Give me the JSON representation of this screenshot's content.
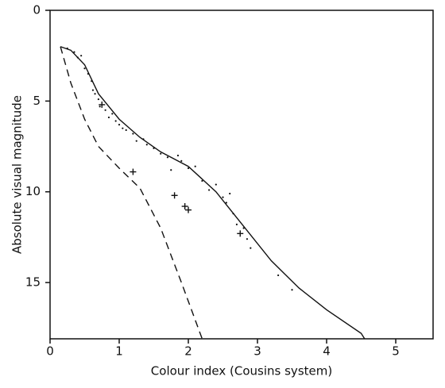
{
  "chart_data": {
    "type": "scatter",
    "xlabel": "Colour index (Cousins system)",
    "ylabel": "Absolute visual magnitude",
    "xlim": [
      0,
      5.54
    ],
    "ylim": [
      0,
      18.1
    ],
    "y_inverted": true,
    "xticks": [
      0,
      1,
      2,
      3,
      4,
      5
    ],
    "yticks": [
      0,
      5,
      10,
      15
    ],
    "color": "#111111",
    "lines": [
      {
        "style": "solid",
        "x": [
          0.15,
          0.3,
          0.5,
          0.7,
          1.0,
          1.3,
          1.6,
          2.0,
          2.4,
          2.8,
          3.2,
          3.6,
          4.0,
          4.5,
          4.55
        ],
        "values": [
          2.0,
          2.2,
          3.0,
          4.6,
          6.0,
          7.0,
          7.8,
          8.6,
          10.0,
          11.9,
          13.8,
          15.3,
          16.5,
          17.8,
          18.1
        ]
      },
      {
        "style": "dashed",
        "x": [
          0.15,
          0.3,
          0.5,
          0.7,
          1.0,
          1.3,
          1.6,
          1.9,
          2.2
        ],
        "values": [
          2.0,
          4.0,
          6.0,
          7.5,
          8.7,
          9.8,
          12.0,
          15.0,
          18.1
        ]
      }
    ],
    "points": {
      "x": [
        0.35,
        0.4,
        0.45,
        0.5,
        0.55,
        0.6,
        0.62,
        0.65,
        0.7,
        0.72,
        0.8,
        0.85,
        0.9,
        0.95,
        1.0,
        1.05,
        1.1,
        1.2,
        1.25,
        1.35,
        1.4,
        1.5,
        1.6,
        1.7,
        1.85,
        1.9,
        2.0,
        2.1,
        2.2,
        2.3,
        2.4,
        2.5,
        2.55,
        2.6,
        2.65,
        2.7,
        2.8,
        2.85,
        2.9,
        3.3,
        3.5,
        0.25,
        1.75
      ],
      "values": [
        2.3,
        2.6,
        2.5,
        3.2,
        3.5,
        3.9,
        4.4,
        4.6,
        4.9,
        5.3,
        5.5,
        5.9,
        5.7,
        6.1,
        6.3,
        6.5,
        6.6,
        6.8,
        7.2,
        7.1,
        7.4,
        7.6,
        7.9,
        8.1,
        8.0,
        8.3,
        8.7,
        8.6,
        9.4,
        9.9,
        9.6,
        10.3,
        10.6,
        10.1,
        11.2,
        11.8,
        12.0,
        12.6,
        13.1,
        14.6,
        15.4,
        2.1,
        8.8
      ]
    },
    "crosses": {
      "x": [
        0.75,
        1.2,
        1.8,
        1.95,
        2.0,
        2.75
      ],
      "values": [
        5.2,
        8.9,
        10.2,
        10.8,
        11.0,
        12.3
      ]
    }
  }
}
